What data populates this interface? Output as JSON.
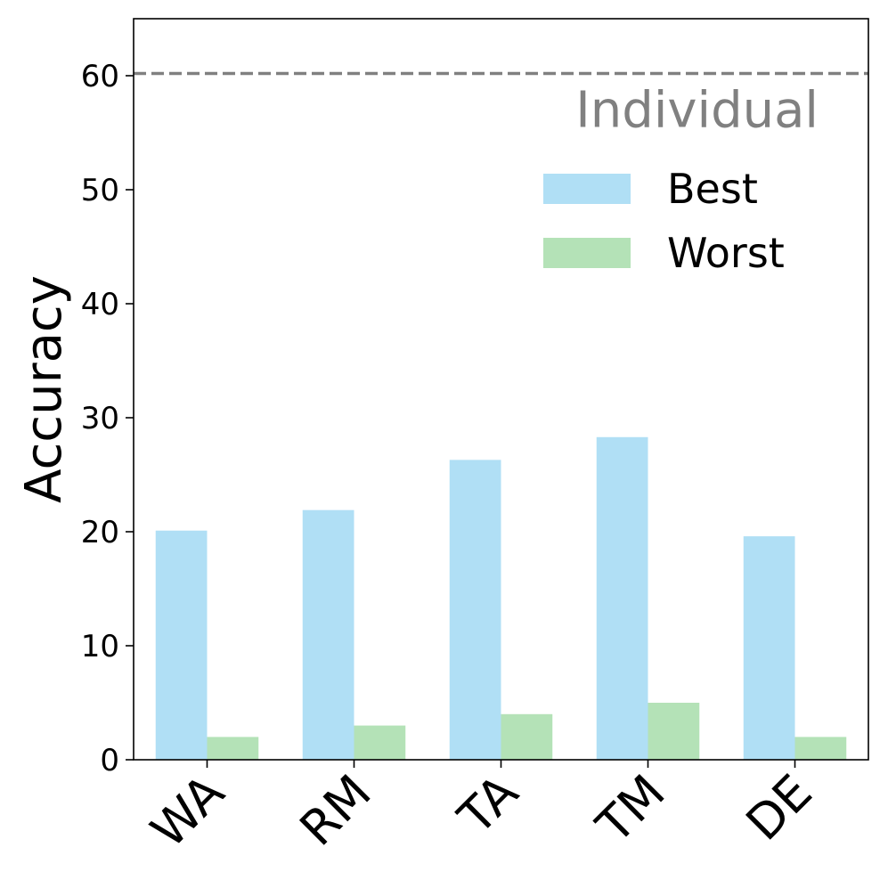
{
  "chart_data": {
    "type": "bar",
    "categories": [
      "WA",
      "RM",
      "TA",
      "TM",
      "DE"
    ],
    "series": [
      {
        "name": "Best",
        "values": [
          20.1,
          21.9,
          26.3,
          28.3,
          19.6
        ],
        "color": "#b0dff5"
      },
      {
        "name": "Worst",
        "values": [
          2.0,
          3.0,
          4.0,
          5.0,
          2.0
        ],
        "color": "#b4e2b7"
      }
    ],
    "ylabel": "Accuracy",
    "xlabel": "",
    "ylim": [
      0,
      65
    ],
    "yticks": [
      0,
      10,
      20,
      30,
      40,
      50,
      60
    ],
    "reference_line": {
      "label": "Individual",
      "value": 60.2,
      "color": "#808080",
      "style": "dashed"
    },
    "legend_position": "top-right",
    "grid": false
  }
}
